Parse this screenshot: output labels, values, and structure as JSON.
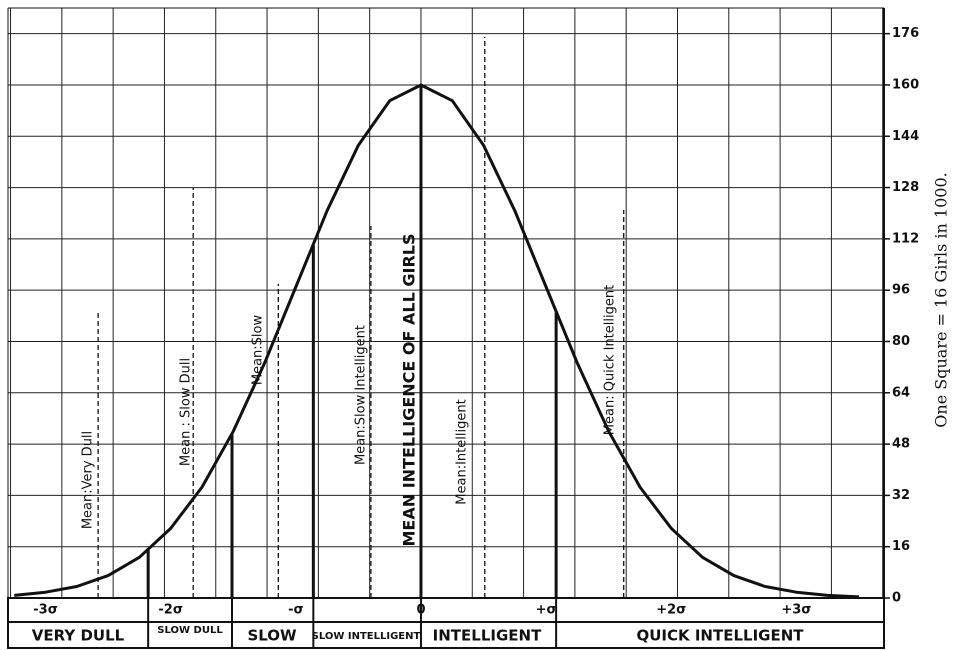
{
  "chart_data": {
    "type": "line",
    "ylabel": "One Square = 16 Girls in 1000.",
    "xlim": [
      -3.3,
      3.7
    ],
    "ylim": [
      0,
      184
    ],
    "yticks": [
      0,
      16,
      32,
      48,
      64,
      80,
      96,
      112,
      128,
      144,
      160,
      176
    ],
    "xticks": [
      {
        "value": -3,
        "label": "-3σ"
      },
      {
        "value": -2,
        "label": "-2σ"
      },
      {
        "value": -1,
        "label": "-σ"
      },
      0,
      {
        "value": 1,
        "label": "+σ"
      },
      {
        "value": 2,
        "label": "+2σ"
      },
      {
        "value": 3,
        "label": "+3σ"
      }
    ],
    "grid": true,
    "series": [
      {
        "color": "#111111",
        "x": [
          -3.25,
          -3,
          -2.75,
          -2.5,
          -2.25,
          -2,
          -1.75,
          -1.5,
          -1.25,
          -1,
          -0.75,
          -0.5,
          -0.25,
          0,
          0.25,
          0.5,
          0.75,
          1,
          1.25,
          1.5,
          1.75,
          2,
          2.25,
          2.5,
          2.75,
          3,
          3.25,
          3.5
        ],
        "values": [
          0.8,
          1.8,
          3.6,
          7.0,
          12.7,
          21.7,
          34.6,
          52.0,
          73.2,
          97.0,
          120.8,
          141.2,
          155.1,
          160,
          155.1,
          141.2,
          120.8,
          97.0,
          73.2,
          52.0,
          34.6,
          21.7,
          12.7,
          7.0,
          3.6,
          1.8,
          0.8,
          0.35
        ]
      }
    ],
    "boundaries": {
      "x": [
        -2.18,
        -1.51,
        -0.86,
        0,
        1.08
      ],
      "values": [
        15,
        51,
        110,
        160,
        89
      ]
    },
    "mean_lines": {
      "x": [
        -2.58,
        -1.82,
        -1.14,
        -0.4,
        0.51,
        1.62
      ],
      "values": [
        89,
        128,
        98,
        116,
        175,
        121
      ]
    },
    "annotations": [
      "Mean:Very Dull",
      "Mean : Slow Dull",
      "Mean:Slow",
      "Mean:Slow Intelligent",
      "MEAN INTELLIGENCE  OF ALL GIRLS",
      "Mean:Intelligent",
      "Mean:      Quick  Intelligent"
    ],
    "categories": [
      "VERY DULL",
      "SLOW DULL",
      "SLOW",
      "SLOW INTELLIGENT",
      "INTELLIGENT",
      "QUICK INTELLIGENT"
    ]
  }
}
